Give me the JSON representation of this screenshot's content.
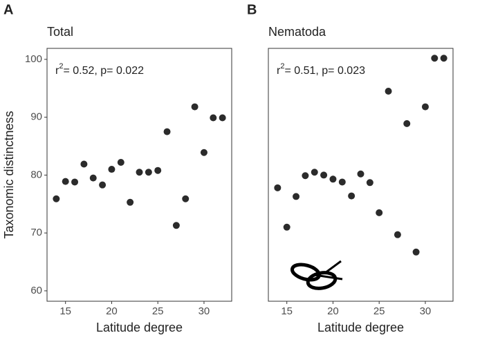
{
  "chart_data": [
    {
      "type": "scatter",
      "panel_label": "A",
      "title": "Total",
      "x_label": "Latitude degree",
      "y_label": "Taxonomic distinctness",
      "annotation": {
        "base": "r",
        "sup": "2",
        "text": "= 0.52, p= 0.022"
      },
      "x": [
        14,
        15,
        16,
        17,
        18,
        19,
        20,
        21,
        22,
        23,
        24,
        25,
        26,
        27,
        28,
        29,
        30,
        31,
        32
      ],
      "values": [
        75.9,
        78.9,
        78.8,
        81.9,
        79.5,
        78.3,
        81.0,
        82.2,
        75.3,
        80.5,
        80.5,
        80.8,
        87.5,
        71.3,
        75.9,
        91.8,
        83.9,
        89.9,
        89.9
      ],
      "color": "#2b2b2b",
      "xlim": [
        13,
        33
      ],
      "ylim": [
        58.2,
        101.9
      ],
      "xticks": [
        15,
        20,
        25,
        30
      ],
      "yticks": [
        60,
        70,
        80,
        90,
        100
      ]
    },
    {
      "type": "scatter",
      "panel_label": "B",
      "title": "Nematoda",
      "x_label": "Latitude degree",
      "annotation": {
        "base": "r",
        "sup": "2",
        "text": "= 0.51, p= 0.023"
      },
      "x": [
        14,
        15,
        16,
        17,
        18,
        19,
        20,
        21,
        22,
        23,
        24,
        25,
        26,
        27,
        28,
        29,
        30,
        31,
        32
      ],
      "values": [
        77.8,
        71.0,
        76.3,
        79.9,
        80.5,
        80.0,
        79.3,
        78.8,
        76.4,
        80.2,
        78.7,
        73.5,
        94.5,
        69.7,
        88.9,
        66.7,
        91.8,
        100.2,
        100.2
      ],
      "color": "#2b2b2b",
      "xlim": [
        13,
        33
      ],
      "ylim": [
        58.2,
        101.9
      ],
      "xticks": [
        15,
        20,
        25,
        30
      ]
    }
  ]
}
